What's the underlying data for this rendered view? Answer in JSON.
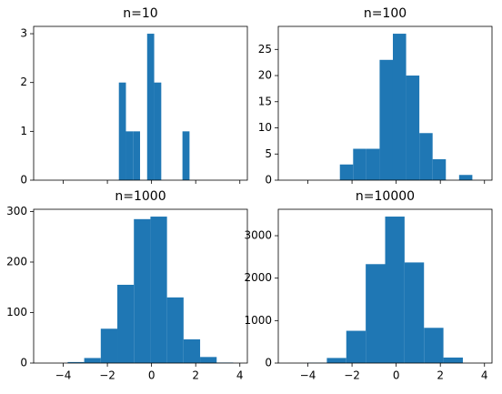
{
  "chart_data": [
    {
      "type": "histogram",
      "title": "n=10",
      "color": "#1f77b4",
      "bins": [
        -1.48,
        -1.16,
        -0.84,
        -0.52,
        -0.2,
        0.12,
        0.44,
        0.76,
        1.08,
        1.4,
        1.72
      ],
      "values": [
        2,
        1,
        1,
        0,
        3,
        2,
        0,
        0,
        0,
        1
      ],
      "xlim": [
        -5.34,
        4.34
      ],
      "xticks": [
        -4,
        -2,
        0,
        2,
        4
      ],
      "ylim": [
        0,
        3.15
      ],
      "yticks": [
        0,
        1,
        2,
        3
      ]
    },
    {
      "type": "histogram",
      "title": "n=100",
      "color": "#1f77b4",
      "bins": [
        -2.55,
        -1.95,
        -1.35,
        -0.75,
        -0.15,
        0.45,
        1.05,
        1.65,
        2.25,
        2.85,
        3.45
      ],
      "values": [
        3,
        6,
        6,
        23,
        28,
        20,
        9,
        4,
        0,
        1
      ],
      "xlim": [
        -5.34,
        4.34
      ],
      "xticks": [
        -4,
        -2,
        0,
        2,
        4
      ],
      "ylim": [
        0,
        29.4
      ],
      "yticks": [
        0,
        5,
        10,
        15,
        20,
        25
      ]
    },
    {
      "type": "histogram",
      "title": "n=1000",
      "color": "#1f77b4",
      "bins": [
        -3.8,
        -3.05,
        -2.3,
        -1.55,
        -0.8,
        -0.05,
        0.7,
        1.45,
        2.2,
        2.95,
        3.7
      ],
      "values": [
        2,
        10,
        68,
        155,
        285,
        290,
        130,
        47,
        12,
        1
      ],
      "xlim": [
        -5.34,
        4.34
      ],
      "xticks": [
        {
          "value": -4,
          "label": "−4"
        },
        {
          "value": -2,
          "label": "−2"
        },
        0,
        2,
        4
      ],
      "ylim": [
        0,
        304.5
      ],
      "yticks": [
        0,
        100,
        200,
        300
      ]
    },
    {
      "type": "histogram",
      "title": "n=10000",
      "color": "#1f77b4",
      "bins": [
        -4.9,
        -4.02,
        -3.14,
        -2.26,
        -1.38,
        -0.5,
        0.38,
        1.26,
        2.14,
        3.02,
        3.9
      ],
      "values": [
        1,
        8,
        120,
        760,
        2330,
        3450,
        2370,
        830,
        130,
        1
      ],
      "xlim": [
        -5.34,
        4.34
      ],
      "xticks": [
        {
          "value": -4,
          "label": "−4"
        },
        {
          "value": -2,
          "label": "−2"
        },
        0,
        2,
        4
      ],
      "ylim": [
        0,
        3622
      ],
      "yticks": [
        0,
        1000,
        2000,
        3000
      ]
    }
  ]
}
